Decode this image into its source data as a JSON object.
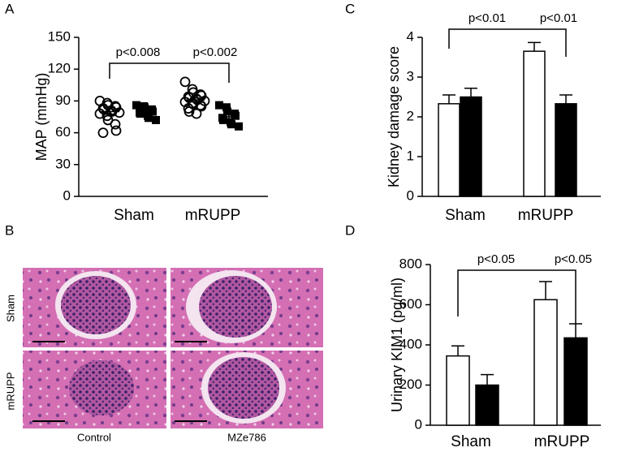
{
  "panel_labels": [
    "A",
    "B",
    "C",
    "D"
  ],
  "histology": {
    "rows": [
      "Sham",
      "mRUPP"
    ],
    "columns": [
      "Control",
      "MZe786"
    ]
  },
  "chart_data": [
    {
      "type": "dot",
      "ylabel": "MAP (mmHg)",
      "categories": [
        "Sham",
        "mRUPP"
      ],
      "ylim": [
        0,
        150
      ],
      "yticks": [
        0,
        30,
        60,
        90,
        120,
        150
      ],
      "series": [
        {
          "marker": "circle-open",
          "color": "#000000",
          "values": [
            [
              90,
              88,
              86,
              85,
              84,
              83,
              82,
              81,
              80,
              79,
              78,
              76,
              72,
              68,
              62,
              60
            ],
            [
              108,
              101,
              98,
              96,
              95,
              94,
              93,
              92,
              91,
              90,
              89,
              88,
              87,
              86,
              85,
              83,
              80,
              78
            ]
          ],
          "means": [
            80,
            91
          ],
          "errors": [
            2.5,
            1.8
          ]
        },
        {
          "marker": "square",
          "color": "#000000",
          "values": [
            [
              86,
              85,
              84,
              82,
              80,
              79,
              78,
              76,
              74,
              72
            ],
            [
              86,
              84,
              80,
              78,
              76,
              74,
              72,
              70,
              68,
              66
            ]
          ],
          "means": [
            80,
            75
          ],
          "errors": [
            1.5,
            2
          ]
        }
      ],
      "annotations": [
        "p<0.008",
        "p<0.002"
      ]
    },
    {
      "type": "bar",
      "ylabel": "Kidney damage score",
      "categories": [
        "Sham",
        "mRUPP"
      ],
      "ylim": [
        0,
        4
      ],
      "yticks": [
        0,
        1,
        2,
        3,
        4
      ],
      "series": [
        {
          "color": "#ffffff",
          "values": [
            2.33,
            3.65
          ],
          "errors": [
            0.22,
            0.22
          ]
        },
        {
          "color": "#000000",
          "values": [
            2.5,
            2.33
          ],
          "errors": [
            0.22,
            0.22
          ]
        }
      ],
      "annotations": [
        "p<0.01",
        "p<0.01"
      ]
    },
    {
      "type": "bar",
      "ylabel": "Urinary KIM1 (pg/ml)",
      "categories": [
        "Sham",
        "mRUPP"
      ],
      "ylim": [
        0,
        800
      ],
      "yticks": [
        0,
        200,
        400,
        600,
        800
      ],
      "series": [
        {
          "color": "#ffffff",
          "values": [
            345,
            625
          ],
          "errors": [
            50,
            90
          ]
        },
        {
          "color": "#000000",
          "values": [
            200,
            435
          ],
          "errors": [
            52,
            70
          ]
        }
      ],
      "annotations": [
        "p<0.05",
        "p<0.05"
      ]
    }
  ]
}
